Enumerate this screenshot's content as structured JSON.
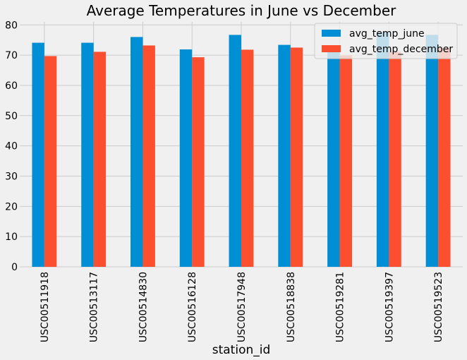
{
  "chart_data": {
    "type": "bar",
    "title": "Average Temperatures in June vs December",
    "xlabel": "station_id",
    "ylabel": "",
    "categories": [
      "USC00511918",
      "USC00513117",
      "USC00514830",
      "USC00516128",
      "USC00517948",
      "USC00518838",
      "USC00519281",
      "USC00519397",
      "USC00519523"
    ],
    "series": [
      {
        "name": "avg_temp_june",
        "color": "#008fd5",
        "values": [
          74.1,
          74.1,
          76.0,
          71.9,
          76.7,
          73.4,
          73.3,
          77.6,
          76.7
        ]
      },
      {
        "name": "avg_temp_december",
        "color": "#fc4f30",
        "values": [
          69.7,
          71.1,
          73.2,
          69.3,
          71.8,
          72.5,
          69.9,
          71.1,
          72.4
        ]
      }
    ],
    "ylim": [
      0,
      81
    ],
    "yticks": [
      0,
      10,
      20,
      30,
      40,
      50,
      60,
      70,
      80
    ],
    "grid": true,
    "legend_position": "top-right"
  }
}
